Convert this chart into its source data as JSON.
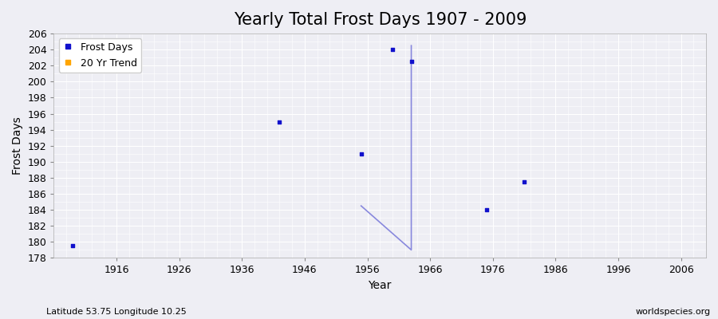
{
  "title": "Yearly Total Frost Days 1907 - 2009",
  "xlabel": "Year",
  "ylabel": "Frost Days",
  "xlim": [
    1906,
    2010
  ],
  "ylim": [
    178,
    206
  ],
  "yticks": [
    178,
    180,
    182,
    184,
    186,
    188,
    190,
    192,
    194,
    196,
    198,
    200,
    202,
    204,
    206
  ],
  "xticks": [
    1916,
    1926,
    1936,
    1946,
    1956,
    1966,
    1976,
    1986,
    1996,
    2006
  ],
  "frost_days_x": [
    1909,
    1942,
    1955,
    1960,
    1963,
    1975,
    1981
  ],
  "frost_days_y": [
    179.5,
    195.0,
    191.0,
    204.0,
    202.5,
    184.0,
    187.5
  ],
  "trend_x": [
    1955,
    1963,
    1963
  ],
  "trend_y": [
    184.5,
    179.0,
    204.5
  ],
  "scatter_color": "#1111cc",
  "trend_color": "#8888dd",
  "plot_bg_color": "#eeeef4",
  "fig_bg_color": "#eeeef4",
  "grid_major_color": "#ffffff",
  "grid_minor_color": "#ffffff",
  "legend_labels": [
    "Frost Days",
    "20 Yr Trend"
  ],
  "legend_colors": [
    "#1111cc",
    "#ffa500"
  ],
  "subtitle": "Latitude 53.75 Longitude 10.25",
  "watermark": "worldspecies.org",
  "title_fontsize": 15,
  "axis_fontsize": 10,
  "tick_fontsize": 9
}
